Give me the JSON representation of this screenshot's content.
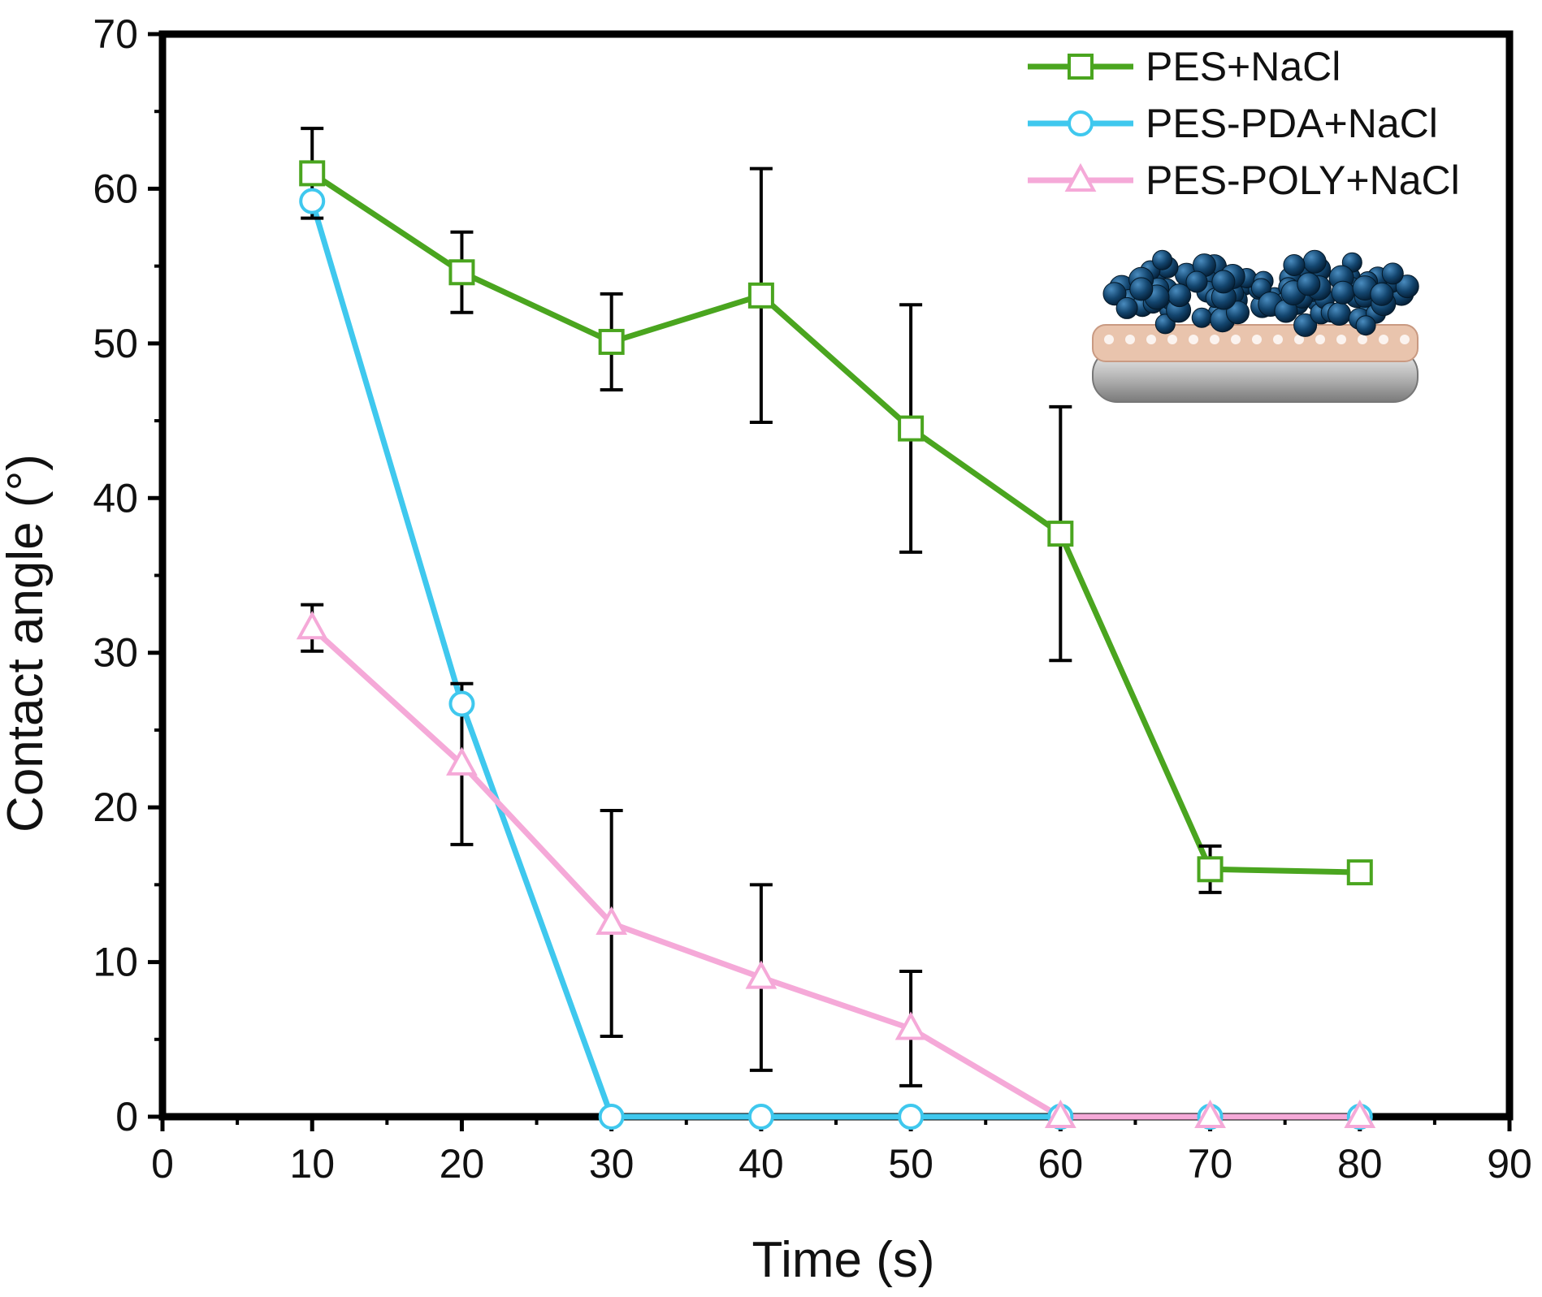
{
  "chart_data": {
    "type": "line",
    "title": "",
    "xlabel": "Time (s)",
    "ylabel": "Contact angle (°)",
    "xlim": [
      0,
      90
    ],
    "ylim": [
      0,
      70
    ],
    "xticks": [
      0,
      10,
      20,
      30,
      40,
      50,
      60,
      70,
      80,
      90
    ],
    "yticks": [
      0,
      10,
      20,
      30,
      40,
      50,
      60,
      70
    ],
    "grid": false,
    "legend_position": "top-right",
    "x": [
      10,
      20,
      30,
      40,
      50,
      60,
      70,
      80
    ],
    "series": [
      {
        "name": "PES+NaCl",
        "color": "#4aa51f",
        "marker": "square",
        "values": [
          61.0,
          54.6,
          50.1,
          53.1,
          44.5,
          37.7,
          16.0,
          15.8
        ],
        "error": [
          2.9,
          2.6,
          3.1,
          8.2,
          8.0,
          8.2,
          1.5,
          0
        ]
      },
      {
        "name": "PES-PDA+NaCl",
        "color": "#3fc8ee",
        "marker": "circle",
        "values": [
          59.2,
          26.7,
          0,
          0,
          0,
          0,
          0,
          0
        ],
        "error": [
          0,
          0,
          0,
          0,
          0,
          0,
          0,
          0
        ]
      },
      {
        "name": "PES-POLY+NaCl",
        "color": "#f5a9d8",
        "marker": "triangle",
        "values": [
          31.6,
          22.8,
          12.5,
          9.0,
          5.7,
          0,
          0,
          0
        ],
        "error": [
          1.5,
          5.2,
          7.3,
          6.0,
          3.7,
          0,
          0,
          0
        ]
      }
    ],
    "inset_image": "membrane-schematic-illustration"
  }
}
